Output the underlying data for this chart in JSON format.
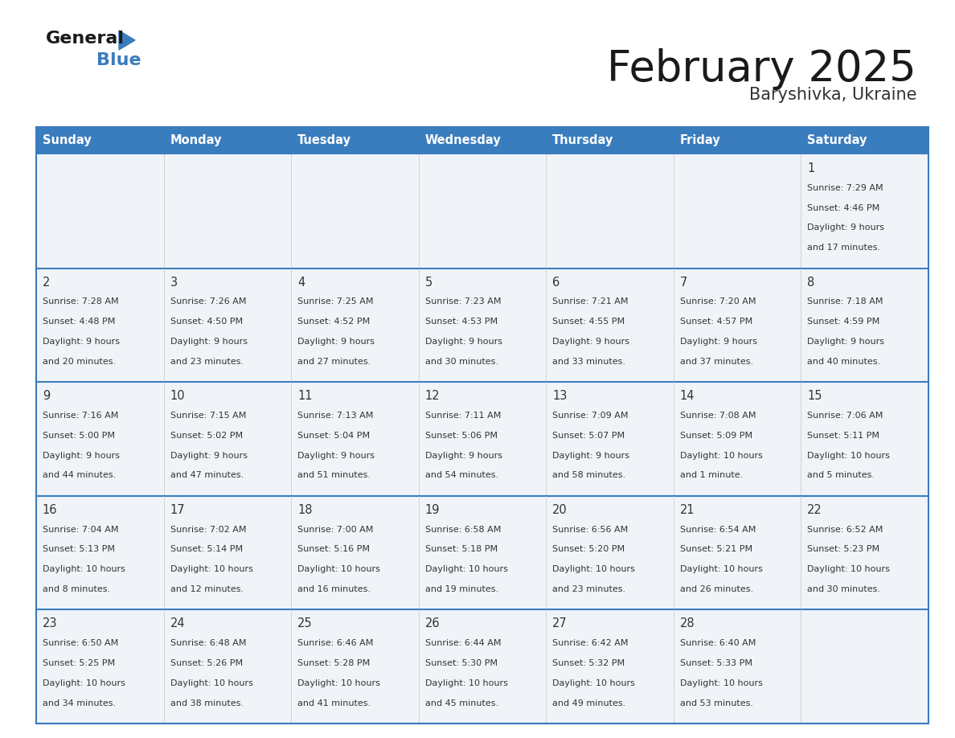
{
  "title": "February 2025",
  "subtitle": "Baryshivka, Ukraine",
  "header_bg": "#3a7dbf",
  "header_text_color": "#ffffff",
  "cell_bg_even": "#f0f4f8",
  "cell_bg_odd": "#ffffff",
  "border_color": "#3a7dbf",
  "text_color": "#333333",
  "days_of_week": [
    "Sunday",
    "Monday",
    "Tuesday",
    "Wednesday",
    "Thursday",
    "Friday",
    "Saturday"
  ],
  "calendar_data": [
    [
      null,
      null,
      null,
      null,
      null,
      null,
      {
        "day": "1",
        "sunrise": "7:29 AM",
        "sunset": "4:46 PM",
        "daylight_line1": "Daylight: 9 hours",
        "daylight_line2": "and 17 minutes."
      }
    ],
    [
      {
        "day": "2",
        "sunrise": "7:28 AM",
        "sunset": "4:48 PM",
        "daylight_line1": "Daylight: 9 hours",
        "daylight_line2": "and 20 minutes."
      },
      {
        "day": "3",
        "sunrise": "7:26 AM",
        "sunset": "4:50 PM",
        "daylight_line1": "Daylight: 9 hours",
        "daylight_line2": "and 23 minutes."
      },
      {
        "day": "4",
        "sunrise": "7:25 AM",
        "sunset": "4:52 PM",
        "daylight_line1": "Daylight: 9 hours",
        "daylight_line2": "and 27 minutes."
      },
      {
        "day": "5",
        "sunrise": "7:23 AM",
        "sunset": "4:53 PM",
        "daylight_line1": "Daylight: 9 hours",
        "daylight_line2": "and 30 minutes."
      },
      {
        "day": "6",
        "sunrise": "7:21 AM",
        "sunset": "4:55 PM",
        "daylight_line1": "Daylight: 9 hours",
        "daylight_line2": "and 33 minutes."
      },
      {
        "day": "7",
        "sunrise": "7:20 AM",
        "sunset": "4:57 PM",
        "daylight_line1": "Daylight: 9 hours",
        "daylight_line2": "and 37 minutes."
      },
      {
        "day": "8",
        "sunrise": "7:18 AM",
        "sunset": "4:59 PM",
        "daylight_line1": "Daylight: 9 hours",
        "daylight_line2": "and 40 minutes."
      }
    ],
    [
      {
        "day": "9",
        "sunrise": "7:16 AM",
        "sunset": "5:00 PM",
        "daylight_line1": "Daylight: 9 hours",
        "daylight_line2": "and 44 minutes."
      },
      {
        "day": "10",
        "sunrise": "7:15 AM",
        "sunset": "5:02 PM",
        "daylight_line1": "Daylight: 9 hours",
        "daylight_line2": "and 47 minutes."
      },
      {
        "day": "11",
        "sunrise": "7:13 AM",
        "sunset": "5:04 PM",
        "daylight_line1": "Daylight: 9 hours",
        "daylight_line2": "and 51 minutes."
      },
      {
        "day": "12",
        "sunrise": "7:11 AM",
        "sunset": "5:06 PM",
        "daylight_line1": "Daylight: 9 hours",
        "daylight_line2": "and 54 minutes."
      },
      {
        "day": "13",
        "sunrise": "7:09 AM",
        "sunset": "5:07 PM",
        "daylight_line1": "Daylight: 9 hours",
        "daylight_line2": "and 58 minutes."
      },
      {
        "day": "14",
        "sunrise": "7:08 AM",
        "sunset": "5:09 PM",
        "daylight_line1": "Daylight: 10 hours",
        "daylight_line2": "and 1 minute."
      },
      {
        "day": "15",
        "sunrise": "7:06 AM",
        "sunset": "5:11 PM",
        "daylight_line1": "Daylight: 10 hours",
        "daylight_line2": "and 5 minutes."
      }
    ],
    [
      {
        "day": "16",
        "sunrise": "7:04 AM",
        "sunset": "5:13 PM",
        "daylight_line1": "Daylight: 10 hours",
        "daylight_line2": "and 8 minutes."
      },
      {
        "day": "17",
        "sunrise": "7:02 AM",
        "sunset": "5:14 PM",
        "daylight_line1": "Daylight: 10 hours",
        "daylight_line2": "and 12 minutes."
      },
      {
        "day": "18",
        "sunrise": "7:00 AM",
        "sunset": "5:16 PM",
        "daylight_line1": "Daylight: 10 hours",
        "daylight_line2": "and 16 minutes."
      },
      {
        "day": "19",
        "sunrise": "6:58 AM",
        "sunset": "5:18 PM",
        "daylight_line1": "Daylight: 10 hours",
        "daylight_line2": "and 19 minutes."
      },
      {
        "day": "20",
        "sunrise": "6:56 AM",
        "sunset": "5:20 PM",
        "daylight_line1": "Daylight: 10 hours",
        "daylight_line2": "and 23 minutes."
      },
      {
        "day": "21",
        "sunrise": "6:54 AM",
        "sunset": "5:21 PM",
        "daylight_line1": "Daylight: 10 hours",
        "daylight_line2": "and 26 minutes."
      },
      {
        "day": "22",
        "sunrise": "6:52 AM",
        "sunset": "5:23 PM",
        "daylight_line1": "Daylight: 10 hours",
        "daylight_line2": "and 30 minutes."
      }
    ],
    [
      {
        "day": "23",
        "sunrise": "6:50 AM",
        "sunset": "5:25 PM",
        "daylight_line1": "Daylight: 10 hours",
        "daylight_line2": "and 34 minutes."
      },
      {
        "day": "24",
        "sunrise": "6:48 AM",
        "sunset": "5:26 PM",
        "daylight_line1": "Daylight: 10 hours",
        "daylight_line2": "and 38 minutes."
      },
      {
        "day": "25",
        "sunrise": "6:46 AM",
        "sunset": "5:28 PM",
        "daylight_line1": "Daylight: 10 hours",
        "daylight_line2": "and 41 minutes."
      },
      {
        "day": "26",
        "sunrise": "6:44 AM",
        "sunset": "5:30 PM",
        "daylight_line1": "Daylight: 10 hours",
        "daylight_line2": "and 45 minutes."
      },
      {
        "day": "27",
        "sunrise": "6:42 AM",
        "sunset": "5:32 PM",
        "daylight_line1": "Daylight: 10 hours",
        "daylight_line2": "and 49 minutes."
      },
      {
        "day": "28",
        "sunrise": "6:40 AM",
        "sunset": "5:33 PM",
        "daylight_line1": "Daylight: 10 hours",
        "daylight_line2": "and 53 minutes."
      },
      null
    ]
  ]
}
